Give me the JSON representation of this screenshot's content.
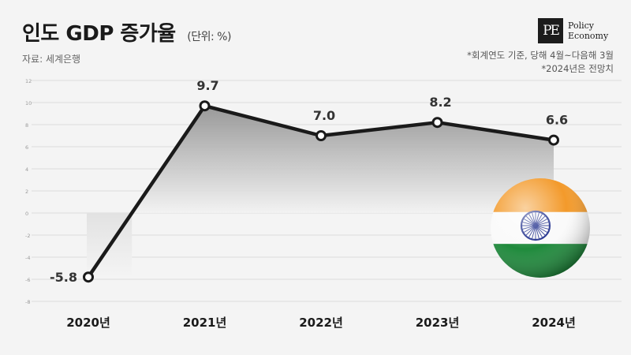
{
  "header": {
    "title": "인도 GDP 증가율",
    "unit": "(단위: %)",
    "source": "자료: 세계은행",
    "notes": [
      "*회계연도 기준, 당해 4월~다음해 3월",
      "*2024년은 전망치"
    ]
  },
  "logo": {
    "mark": "PE",
    "line1": "Policy",
    "line2": "Economy"
  },
  "flag_icon": "india-flag-badge-icon",
  "colors": {
    "line": "#1a1a1a",
    "grid": "#dddddd",
    "area_top": "#8f8f8f",
    "area_bottom": "#f2f2f2",
    "flag_saffron": "#f39a2b",
    "flag_green": "#1f8a3c",
    "flag_chakra": "#1b2a8a"
  },
  "chart_data": {
    "type": "line",
    "title": "인도 GDP 증가율",
    "categories": [
      "2020년",
      "2021년",
      "2022년",
      "2023년",
      "2024년"
    ],
    "values": [
      -5.8,
      9.7,
      7.0,
      8.2,
      6.6
    ],
    "value_labels": [
      "-5.8",
      "9.7",
      "7.0",
      "8.2",
      "6.6"
    ],
    "yticks": [
      "12",
      "10",
      "8",
      "6",
      "4",
      "2",
      "0",
      "-2",
      "-4",
      "-6",
      "-8"
    ],
    "ylim": [
      -8,
      12
    ],
    "grid": true,
    "legend": "none"
  }
}
